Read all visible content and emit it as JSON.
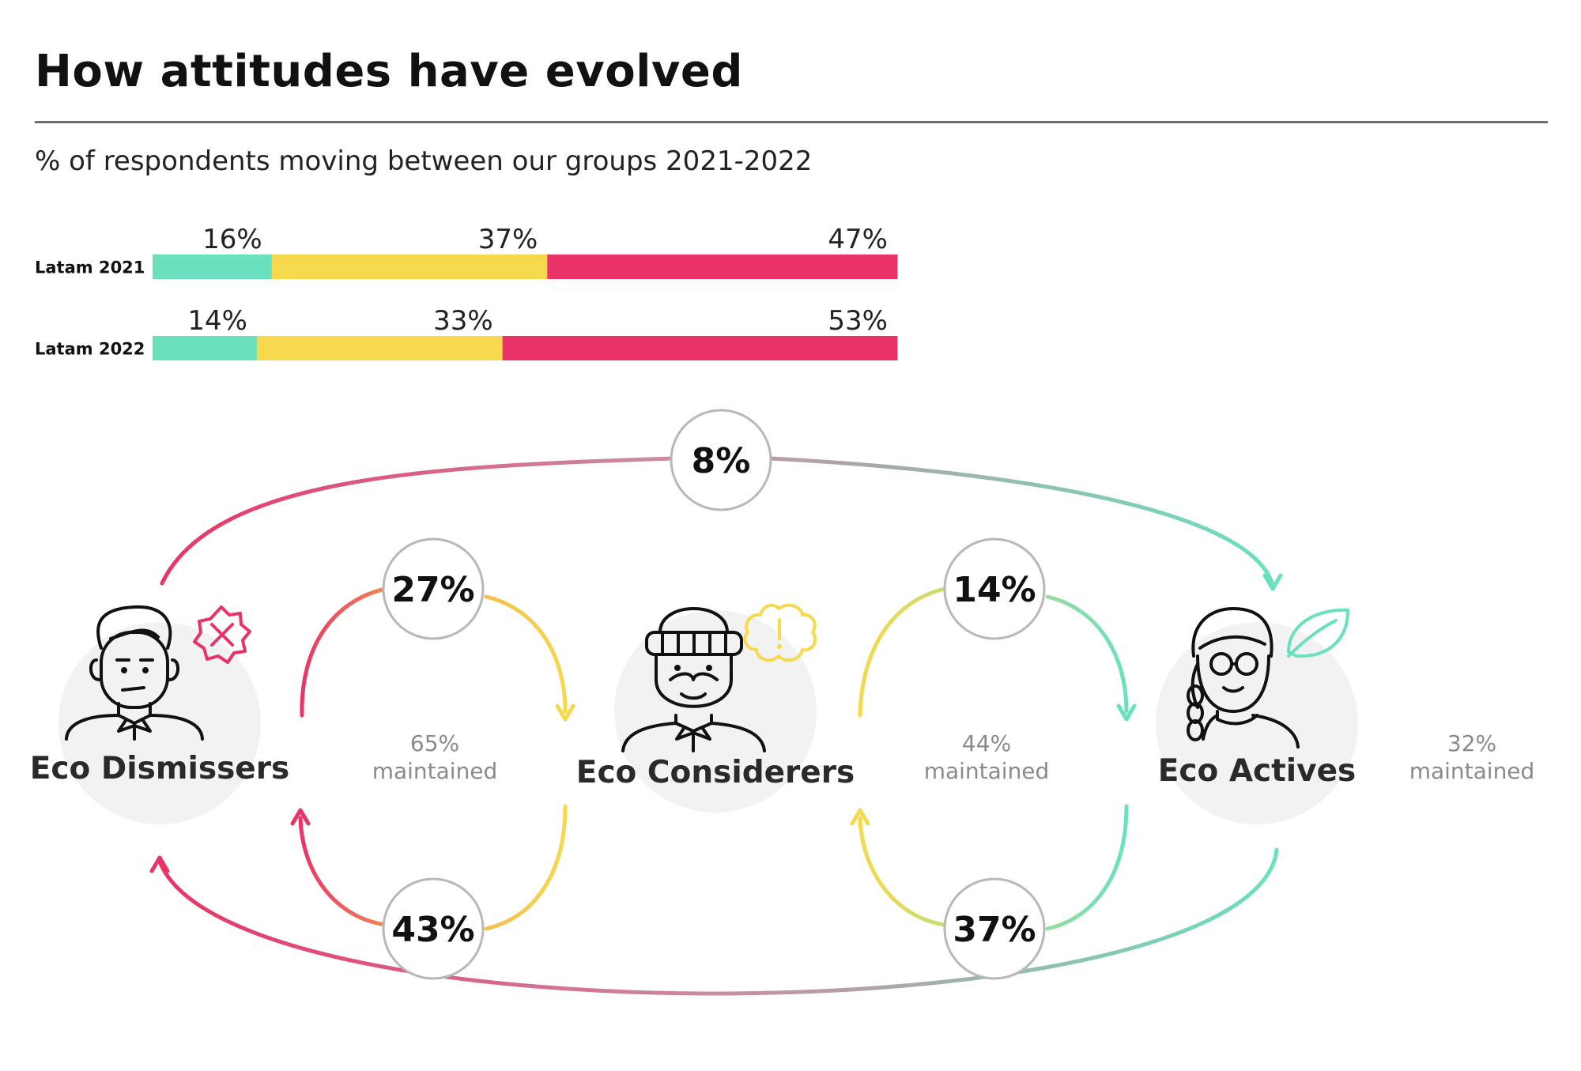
{
  "title": "How attitudes have evolved",
  "subtitle": "% of respondents moving between our groups 2021-2022",
  "colors": {
    "actives": "#6ae0be",
    "considerers": "#f6d94d",
    "dismissers": "#e93366",
    "circle_bg": "#f2f2f2"
  },
  "chart_data": [
    {
      "type": "bar",
      "orientation": "horizontal-stacked",
      "categories": [
        "Latam 2021",
        "Latam 2022"
      ],
      "series": [
        {
          "values": [
            16,
            14
          ],
          "labels": [
            "16%",
            "14%"
          ],
          "color": "#6ae0be"
        },
        {
          "values": [
            37,
            33
          ],
          "labels": [
            "37%",
            "33%"
          ],
          "color": "#f6d94d"
        },
        {
          "values": [
            47,
            53
          ],
          "labels": [
            "47%",
            "53%"
          ],
          "color": "#e93366"
        }
      ],
      "xlim": [
        0,
        100
      ]
    },
    {
      "type": "flow",
      "groups": [
        {
          "key": "dismissers",
          "name": "Eco Dismissers",
          "maintained_value": "65%",
          "maintained_label": "maintained",
          "badge_icon": "x-badge-icon",
          "avatar_icon": "man-avatar-icon"
        },
        {
          "key": "considerers",
          "name": "Eco Considerers",
          "maintained_value": "44%",
          "maintained_label": "maintained",
          "badge_icon": "exclamation-badge-icon",
          "avatar_icon": "bearded-man-beanie-icon"
        },
        {
          "key": "actives",
          "name": "Eco Actives",
          "maintained_value": "32%",
          "maintained_label": "maintained",
          "badge_icon": "leaf-icon",
          "avatar_icon": "woman-glasses-braid-icon"
        }
      ],
      "flows": [
        {
          "from": "dismissers",
          "to": "actives",
          "value": 8,
          "label": "8%"
        },
        {
          "from": "dismissers",
          "to": "considerers",
          "value": 27,
          "label": "27%"
        },
        {
          "from": "considerers",
          "to": "dismissers",
          "value": 43,
          "label": "43%"
        },
        {
          "from": "considerers",
          "to": "actives",
          "value": 14,
          "label": "14%"
        },
        {
          "from": "actives",
          "to": "considerers",
          "value": 37,
          "label": "37%"
        },
        {
          "from": "actives",
          "to": "dismissers",
          "label": ""
        }
      ]
    }
  ]
}
